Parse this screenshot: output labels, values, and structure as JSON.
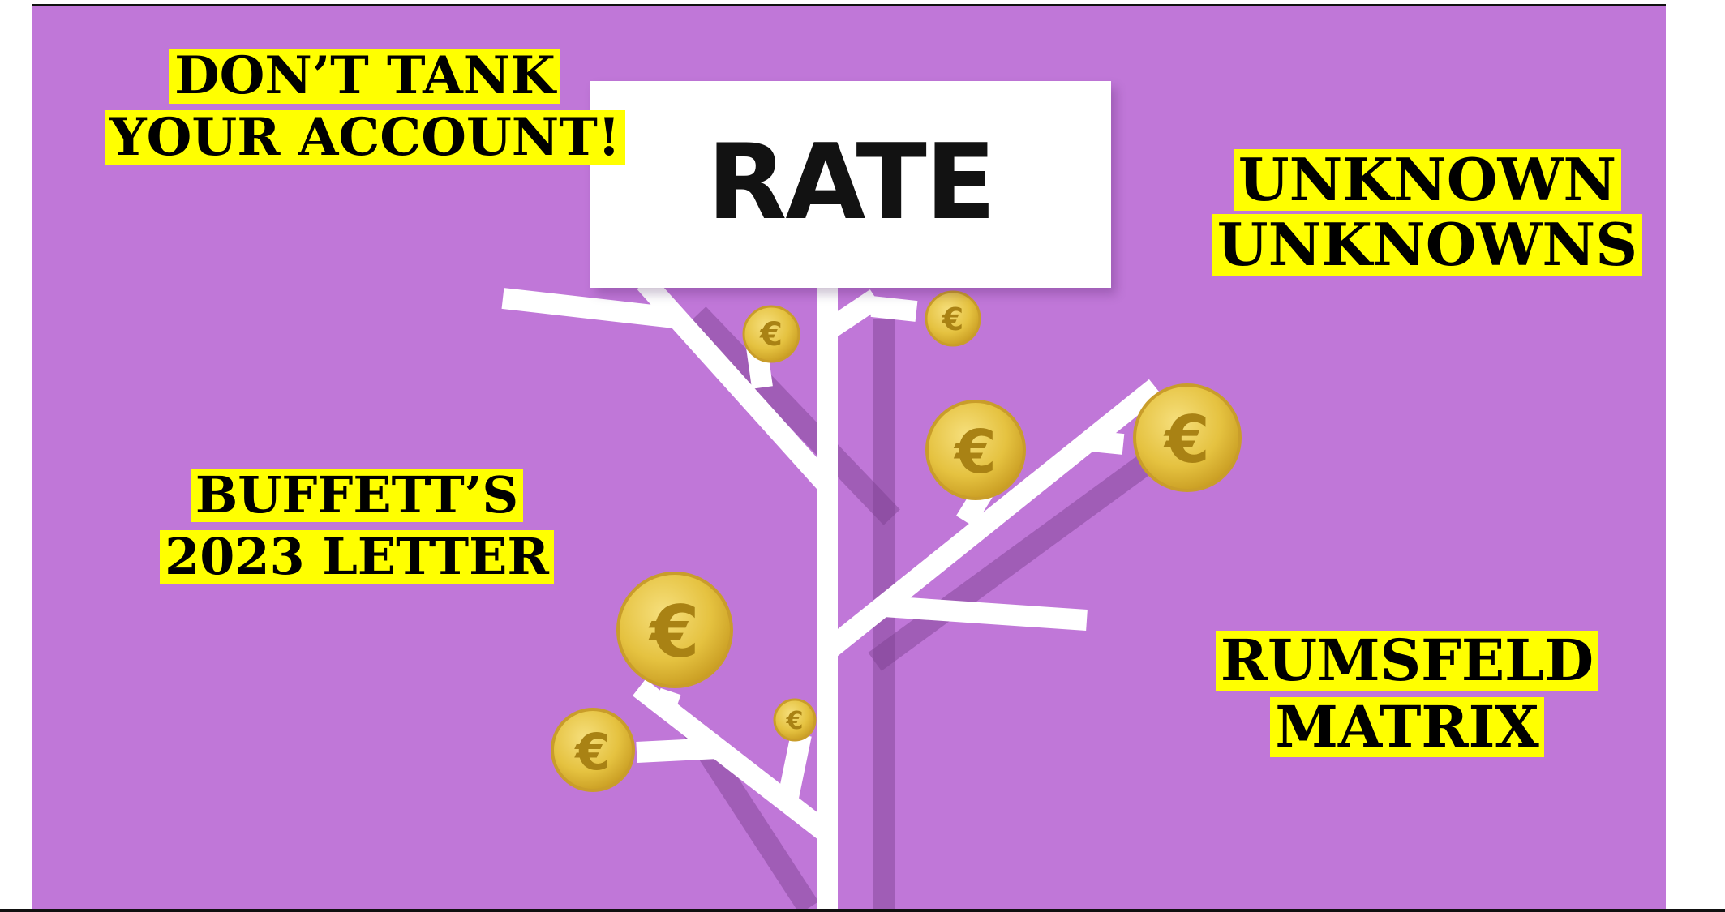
{
  "sign": {
    "text": "RATE"
  },
  "captions": {
    "dont_tank": [
      "DON’T TANK",
      "YOUR ACCOUNT!"
    ],
    "unknown_unknowns": [
      "UNKNOWN",
      "UNKNOWNS"
    ],
    "buffett_letter": [
      "BUFFETT’S",
      "2023 LETTER"
    ],
    "rumsfeld_matrix": [
      "RUMSFELD",
      "MATRIX"
    ]
  },
  "coin_symbol": "€",
  "colors": {
    "background": "#c077d8",
    "caption_highlight": "#ffff00",
    "caption_text": "#000000",
    "sign": "#ffffff",
    "tree": "#ffffff",
    "coin": "#e6c34a"
  },
  "icons": [
    "euro-coin-icon",
    "tree-branch-illustration"
  ]
}
